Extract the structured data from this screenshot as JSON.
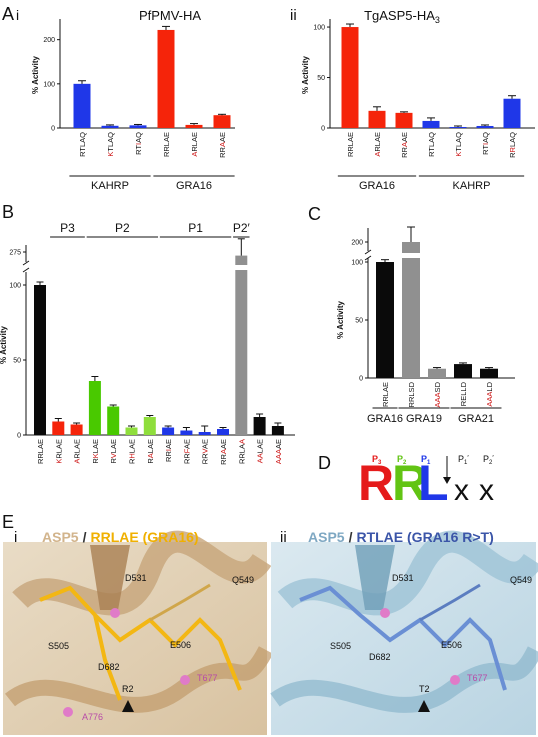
{
  "panel_labels": {
    "A": "A",
    "A_i": "i",
    "A_ii": "ii",
    "B": "B",
    "C": "C",
    "D": "D",
    "E": "E",
    "E_i": "i",
    "E_ii": "ii"
  },
  "colors": {
    "red": "#f5240a",
    "blue": "#1f37e8",
    "green_light": "#8fde3c",
    "green_bright": "#49c900",
    "gray": "#909090",
    "black": "#0a0a0a",
    "dark_red": "#cc1111"
  },
  "chart_data": [
    {
      "id": "Ai",
      "type": "bar",
      "title": "PfPMV-HA",
      "ylabel": "% Activity",
      "ylim": [
        0,
        240
      ],
      "yticks": [
        0,
        100,
        200
      ],
      "categories": [
        "RTLAQ",
        "KTLAQ",
        "RTIAQ",
        "RRLAE",
        "ARLAE",
        "RRAAE"
      ],
      "values": [
        100,
        5,
        6,
        222,
        7,
        29
      ],
      "errors": [
        7,
        2,
        2,
        8,
        3,
        2
      ],
      "bar_colors": [
        "blue",
        "blue",
        "blue",
        "red",
        "red",
        "red"
      ],
      "groups": [
        {
          "label": "KAHRP",
          "from": 0,
          "to": 2
        },
        {
          "label": "GRA16",
          "from": 3,
          "to": 5
        }
      ]
    },
    {
      "id": "Aii",
      "type": "bar",
      "title": "TgASP5-HA3",
      "ylabel": "% Activity",
      "ylim": [
        0,
        105
      ],
      "yticks": [
        0,
        50,
        100
      ],
      "categories": [
        "RRLAE",
        "ARLAE",
        "RRAAE",
        "RTLAQ",
        "KTLAQ",
        "RTIAQ",
        "RRLAQ"
      ],
      "values": [
        100,
        17,
        15,
        7,
        1,
        2,
        29
      ],
      "errors": [
        3,
        4,
        1,
        3,
        1,
        1,
        3
      ],
      "bar_colors": [
        "red",
        "red",
        "red",
        "blue",
        "blue",
        "blue",
        "blue"
      ],
      "groups": [
        {
          "label": "GRA16",
          "from": 0,
          "to": 2
        },
        {
          "label": "KAHRP",
          "from": 3,
          "to": 6
        }
      ]
    },
    {
      "id": "B",
      "type": "bar",
      "ylabel": "% Activity",
      "yticks": [
        0,
        50,
        100,
        275
      ],
      "categories": [
        "RRLAE",
        "KRLAE",
        "ARLAE",
        "RKLAE",
        "RVLAE",
        "RHLAE",
        "RALAE",
        "RRIAE",
        "RRFAE",
        "RRVAE",
        "RRAAE",
        "RRLAA",
        "AALAE",
        "AAAAE"
      ],
      "values": [
        100,
        9,
        7,
        36,
        19,
        5,
        12,
        5,
        3,
        2,
        4,
        272,
        12,
        6
      ],
      "errors": [
        2,
        2,
        1,
        3,
        1,
        1,
        1,
        1,
        2,
        4,
        1,
        14,
        2,
        2
      ],
      "bar_colors": [
        "black",
        "red",
        "red",
        "green_bright",
        "green_bright",
        "green_light",
        "green_light",
        "blue",
        "blue",
        "blue",
        "blue",
        "gray",
        "black",
        "black"
      ],
      "groups": [
        {
          "label": "P3",
          "from": 1,
          "to": 2
        },
        {
          "label": "P2",
          "from": 3,
          "to": 6
        },
        {
          "label": "P1",
          "from": 7,
          "to": 10
        },
        {
          "label": "P2′",
          "from": 11,
          "to": 11
        }
      ]
    },
    {
      "id": "C",
      "type": "bar",
      "ylabel": "% Activity",
      "yticks": [
        0,
        50,
        100,
        200
      ],
      "categories": [
        "RRLAE",
        "RRLSD",
        "AAASD",
        "RELLD",
        "AAALD"
      ],
      "values": [
        100,
        200,
        8,
        12,
        8
      ],
      "errors": [
        2,
        25,
        1,
        1,
        1
      ],
      "bar_colors": [
        "black",
        "gray",
        "gray",
        "black",
        "black"
      ],
      "groups": [
        {
          "label": "GRA16",
          "from": 0,
          "to": 0
        },
        {
          "label": "GRA19",
          "from": 1,
          "to": 2
        },
        {
          "label": "GRA21",
          "from": 3,
          "to": 4
        }
      ]
    }
  ],
  "motif": {
    "letters": [
      "R",
      "R",
      "L",
      "x",
      "x"
    ],
    "positions": [
      "P3",
      "P2",
      "P1",
      "P1′",
      "P2′"
    ]
  },
  "structure_i": {
    "title_a": "ASP5",
    "slash": "/",
    "title_b": "RRLAE (GRA16)",
    "labels": [
      "D531",
      "Q549",
      "S505",
      "E506",
      "D682",
      "T677",
      "R2",
      "A776"
    ]
  },
  "structure_ii": {
    "title_a": "ASP5",
    "slash": "/",
    "title_b": "RTLAE (GRA16 R>T)",
    "labels": [
      "D531",
      "Q549",
      "S505",
      "E506",
      "D682",
      "T677",
      "T2"
    ]
  }
}
